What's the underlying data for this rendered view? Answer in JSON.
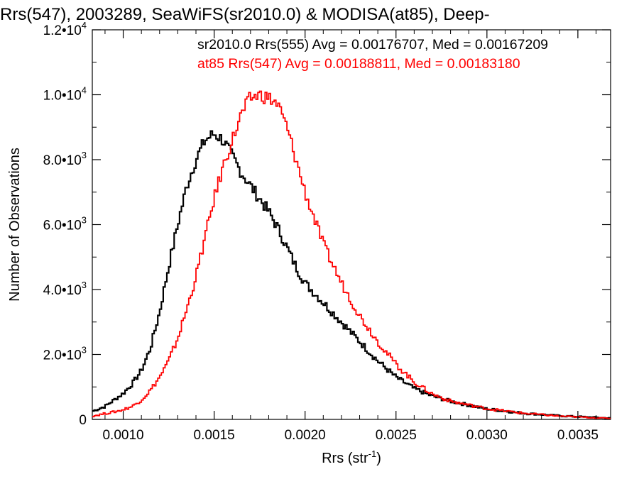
{
  "chart_data": {
    "type": "line",
    "style": "histogram-step",
    "title": "Rrs(547), 2003289, SeaWiFS(sr2010.0) & MODISA(at85), Deep-",
    "xlabel": "Rrs (str",
    "xlabel_superscript": "-1",
    "xlabel_suffix": ")",
    "ylabel": "Number of Observations",
    "xlim": [
      0.00083,
      0.00368
    ],
    "ylim": [
      0,
      12000
    ],
    "grid": false,
    "legend_position": "top-right",
    "xticks": [
      {
        "value": 0.001,
        "label": "0.0010"
      },
      {
        "value": 0.0015,
        "label": "0.0015"
      },
      {
        "value": 0.002,
        "label": "0.0020"
      },
      {
        "value": 0.0025,
        "label": "0.0025"
      },
      {
        "value": 0.003,
        "label": "0.0030"
      },
      {
        "value": 0.0035,
        "label": "0.0035"
      }
    ],
    "yticks": [
      {
        "value": 0,
        "mantissa": "0",
        "exponent": ""
      },
      {
        "value": 2000,
        "mantissa": "2.0•10",
        "exponent": "3"
      },
      {
        "value": 4000,
        "mantissa": "4.0•10",
        "exponent": "3"
      },
      {
        "value": 6000,
        "mantissa": "6.0•10",
        "exponent": "3"
      },
      {
        "value": 8000,
        "mantissa": "8.0•10",
        "exponent": "3"
      },
      {
        "value": 10000,
        "mantissa": "1.0•10",
        "exponent": "4"
      },
      {
        "value": 12000,
        "mantissa": "1.2•10",
        "exponent": "4"
      }
    ],
    "series": [
      {
        "name": "sr2010.0 Rrs(555)",
        "legend": "sr2010.0 Rrs(555) Avg = 0.00176707, Med = 0.00167209",
        "color": "#000000",
        "x": [
          0.00083,
          0.0009,
          0.00095,
          0.001,
          0.00105,
          0.0011,
          0.00115,
          0.0012,
          0.00125,
          0.0013,
          0.00135,
          0.0014,
          0.00145,
          0.0015,
          0.00155,
          0.0016,
          0.00165,
          0.0017,
          0.00175,
          0.0018,
          0.00185,
          0.0019,
          0.00195,
          0.002,
          0.0021,
          0.0022,
          0.0023,
          0.0024,
          0.0025,
          0.0026,
          0.0027,
          0.0028,
          0.003,
          0.0032,
          0.0034,
          0.0036,
          0.00368
        ],
        "y": [
          250,
          400,
          600,
          800,
          1100,
          1500,
          2200,
          3300,
          4700,
          6000,
          7200,
          8000,
          8600,
          8800,
          8600,
          8100,
          7600,
          7200,
          6800,
          6400,
          5900,
          5300,
          4700,
          4200,
          3600,
          3000,
          2400,
          1800,
          1300,
          950,
          720,
          560,
          320,
          190,
          110,
          60,
          40
        ]
      },
      {
        "name": "at85 Rrs(547)",
        "legend": "at85 Rrs(547) Avg = 0.00188811, Med = 0.00183180",
        "color": "#ff0000",
        "x": [
          0.00083,
          0.0009,
          0.00095,
          0.001,
          0.00105,
          0.0011,
          0.00115,
          0.0012,
          0.00125,
          0.0013,
          0.00135,
          0.0014,
          0.00145,
          0.0015,
          0.00155,
          0.0016,
          0.00165,
          0.0017,
          0.00175,
          0.0018,
          0.00185,
          0.0019,
          0.00195,
          0.002,
          0.00205,
          0.0021,
          0.0022,
          0.0023,
          0.0024,
          0.0025,
          0.0026,
          0.0027,
          0.0028,
          0.003,
          0.0032,
          0.0034,
          0.0036,
          0.00368
        ],
        "y": [
          100,
          180,
          230,
          300,
          400,
          600,
          900,
          1300,
          1800,
          2500,
          3400,
          4400,
          5600,
          6800,
          7800,
          8600,
          9400,
          9900,
          10000,
          9900,
          9700,
          9000,
          8000,
          7000,
          6200,
          5400,
          4200,
          3200,
          2400,
          1700,
          1150,
          780,
          560,
          330,
          190,
          100,
          50,
          30
        ]
      }
    ]
  }
}
